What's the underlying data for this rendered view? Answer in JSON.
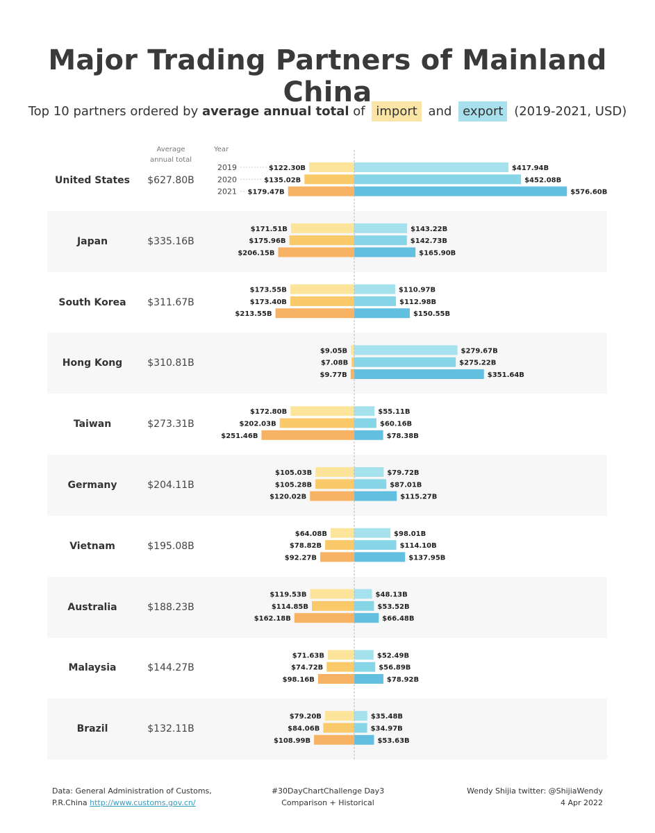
{
  "title": "Major Trading Partners of Mainland China",
  "subtitle": {
    "part1": "Top 10 partners ordered by",
    "bold": "average annual total",
    "part2": "of",
    "import_label": "import",
    "and": "and",
    "export_label": "export",
    "part3": "(2019-2021, USD)"
  },
  "headers": {
    "avg_line1": "Average",
    "avg_line2": "annual total",
    "year": "Year"
  },
  "colors": {
    "import": [
      "#fce49a",
      "#f9c96a",
      "#f8b264"
    ],
    "export": [
      "#a6e2ee",
      "#86d6e8",
      "#63bfe0"
    ],
    "row_shade": "#f7f7f7"
  },
  "chart_data": {
    "type": "bar",
    "years": [
      "2019",
      "2020",
      "2021"
    ],
    "unit": "B USD",
    "partners": [
      {
        "name": "United States",
        "avg": "$627.80B",
        "import": [
          122.3,
          135.02,
          179.47
        ],
        "export": [
          417.94,
          452.08,
          576.6
        ],
        "import_labels": [
          "$122.30B",
          "$135.02B",
          "$179.47B"
        ],
        "export_labels": [
          "$417.94B",
          "$452.08B",
          "$576.60B"
        ]
      },
      {
        "name": "Japan",
        "avg": "$335.16B",
        "import": [
          171.51,
          175.96,
          206.15
        ],
        "export": [
          143.22,
          142.73,
          165.9
        ],
        "import_labels": [
          "$171.51B",
          "$175.96B",
          "$206.15B"
        ],
        "export_labels": [
          "$143.22B",
          "$142.73B",
          "$165.90B"
        ]
      },
      {
        "name": "South Korea",
        "avg": "$311.67B",
        "import": [
          173.55,
          173.4,
          213.55
        ],
        "export": [
          110.97,
          112.98,
          150.55
        ],
        "import_labels": [
          "$173.55B",
          "$173.40B",
          "$213.55B"
        ],
        "export_labels": [
          "$110.97B",
          "$112.98B",
          "$150.55B"
        ]
      },
      {
        "name": "Hong Kong",
        "avg": "$310.81B",
        "import": [
          9.05,
          7.08,
          9.77
        ],
        "export": [
          279.67,
          275.22,
          351.64
        ],
        "import_labels": [
          "$9.05B",
          "$7.08B",
          "$9.77B"
        ],
        "export_labels": [
          "$279.67B",
          "$275.22B",
          "$351.64B"
        ]
      },
      {
        "name": "Taiwan",
        "avg": "$273.31B",
        "import": [
          172.8,
          202.03,
          251.46
        ],
        "export": [
          55.11,
          60.16,
          78.38
        ],
        "import_labels": [
          "$172.80B",
          "$202.03B",
          "$251.46B"
        ],
        "export_labels": [
          "$55.11B",
          "$60.16B",
          "$78.38B"
        ]
      },
      {
        "name": "Germany",
        "avg": "$204.11B",
        "import": [
          105.03,
          105.28,
          120.02
        ],
        "export": [
          79.72,
          87.01,
          115.27
        ],
        "import_labels": [
          "$105.03B",
          "$105.28B",
          "$120.02B"
        ],
        "export_labels": [
          "$79.72B",
          "$87.01B",
          "$115.27B"
        ]
      },
      {
        "name": "Vietnam",
        "avg": "$195.08B",
        "import": [
          64.08,
          78.82,
          92.27
        ],
        "export": [
          98.01,
          114.1,
          137.95
        ],
        "import_labels": [
          "$64.08B",
          "$78.82B",
          "$92.27B"
        ],
        "export_labels": [
          "$98.01B",
          "$114.10B",
          "$137.95B"
        ]
      },
      {
        "name": "Australia",
        "avg": "$188.23B",
        "import": [
          119.53,
          114.85,
          162.18
        ],
        "export": [
          48.13,
          53.52,
          66.48
        ],
        "import_labels": [
          "$119.53B",
          "$114.85B",
          "$162.18B"
        ],
        "export_labels": [
          "$48.13B",
          "$53.52B",
          "$66.48B"
        ]
      },
      {
        "name": "Malaysia",
        "avg": "$144.27B",
        "import": [
          71.63,
          74.72,
          98.16
        ],
        "export": [
          52.49,
          56.89,
          78.92
        ],
        "import_labels": [
          "$71.63B",
          "$74.72B",
          "$98.16B"
        ],
        "export_labels": [
          "$52.49B",
          "$56.89B",
          "$78.92B"
        ]
      },
      {
        "name": "Brazil",
        "avg": "$132.11B",
        "import": [
          79.2,
          84.06,
          108.99
        ],
        "export": [
          35.48,
          34.97,
          53.63
        ],
        "import_labels": [
          "$79.20B",
          "$84.06B",
          "$108.99B"
        ],
        "export_labels": [
          "$35.48B",
          "$34.97B",
          "$53.63B"
        ]
      }
    ]
  },
  "footer": {
    "source_line1": "Data: General Administration of Customs,",
    "source_line2": "P.R.China",
    "source_link": "http://www.customs.gov.cn/",
    "challenge_line1": "#30DayChartChallenge Day3",
    "challenge_line2": "Comparison + Historical",
    "author_line1": "Wendy Shijia  twitter: @ShijiaWendy",
    "author_line2": "4 Apr 2022"
  }
}
